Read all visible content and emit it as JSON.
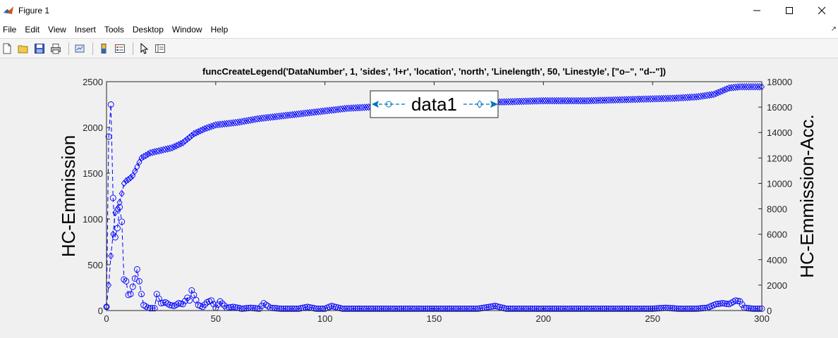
{
  "window": {
    "title": "Figure 1"
  },
  "menu": [
    "File",
    "Edit",
    "View",
    "Insert",
    "Tools",
    "Desktop",
    "Window",
    "Help"
  ],
  "toolbar": {
    "icons": [
      "new-figure-icon",
      "open-file-icon",
      "save-icon",
      "print-icon",
      "link-icon",
      "colorbar-icon",
      "legend-icon",
      "pointer-icon",
      "property-inspector-icon"
    ]
  },
  "colors": {
    "series": "#0000ff",
    "legend_line": "#0072bd",
    "axes": "#262626"
  },
  "chart_data": {
    "type": "line",
    "title": "funcCreateLegend('DataNumber', 1, 'sides', 'l+r', 'location', 'north', 'Linelength', 50, 'Linestyle', [\"o–\", \"d--\"])",
    "xlim": [
      0,
      300
    ],
    "x_ticks": [
      "0",
      "50",
      "100",
      "150",
      "200",
      "250",
      "300"
    ],
    "y_left": {
      "label": "HC-Emmission",
      "lim": [
        0,
        2500
      ],
      "ticks": [
        "0",
        "500",
        "1000",
        "1500",
        "2000",
        "2500"
      ]
    },
    "y_right": {
      "label": "HC-Emmission-Acc.",
      "lim": [
        0,
        18000
      ],
      "ticks": [
        "0",
        "2000",
        "4000",
        "6000",
        "8000",
        "10000",
        "12000",
        "14000",
        "16000",
        "18000"
      ]
    },
    "legend": {
      "entries": [
        "data1"
      ],
      "location": "north"
    },
    "series": [
      {
        "axis": "left",
        "marker": "o",
        "linestyle": "dashed",
        "points": [
          [
            0,
            40
          ],
          [
            1,
            1900
          ],
          [
            2,
            2250
          ],
          [
            3,
            1230
          ],
          [
            4,
            800
          ],
          [
            5,
            900
          ],
          [
            6,
            1130
          ],
          [
            7,
            970
          ],
          [
            8,
            340
          ],
          [
            9,
            320
          ],
          [
            10,
            170
          ],
          [
            11,
            180
          ],
          [
            12,
            260
          ],
          [
            13,
            350
          ],
          [
            14,
            450
          ],
          [
            15,
            320
          ],
          [
            16,
            180
          ],
          [
            17,
            60
          ],
          [
            18,
            45
          ],
          [
            19,
            30
          ],
          [
            20,
            25
          ],
          [
            22,
            25
          ],
          [
            23,
            180
          ],
          [
            25,
            80
          ],
          [
            27,
            90
          ],
          [
            29,
            60
          ],
          [
            31,
            50
          ],
          [
            33,
            80
          ],
          [
            35,
            70
          ],
          [
            37,
            140
          ],
          [
            38,
            110
          ],
          [
            39,
            220
          ],
          [
            40,
            170
          ],
          [
            42,
            60
          ],
          [
            44,
            40
          ],
          [
            46,
            90
          ],
          [
            48,
            110
          ],
          [
            50,
            30
          ],
          [
            52,
            100
          ],
          [
            55,
            30
          ],
          [
            58,
            40
          ],
          [
            62,
            20
          ],
          [
            66,
            30
          ],
          [
            70,
            20
          ],
          [
            72,
            80
          ],
          [
            75,
            30
          ],
          [
            80,
            20
          ],
          [
            88,
            20
          ],
          [
            92,
            40
          ],
          [
            96,
            20
          ],
          [
            100,
            20
          ],
          [
            103,
            50
          ],
          [
            108,
            20
          ],
          [
            115,
            20
          ],
          [
            120,
            20
          ],
          [
            130,
            20
          ],
          [
            140,
            20
          ],
          [
            150,
            20
          ],
          [
            160,
            20
          ],
          [
            170,
            20
          ],
          [
            178,
            50
          ],
          [
            183,
            20
          ],
          [
            190,
            20
          ],
          [
            200,
            20
          ],
          [
            210,
            20
          ],
          [
            220,
            20
          ],
          [
            230,
            20
          ],
          [
            240,
            20
          ],
          [
            250,
            20
          ],
          [
            256,
            30
          ],
          [
            262,
            20
          ],
          [
            270,
            20
          ],
          [
            275,
            30
          ],
          [
            279,
            70
          ],
          [
            282,
            80
          ],
          [
            285,
            70
          ],
          [
            288,
            110
          ],
          [
            290,
            100
          ],
          [
            292,
            30
          ],
          [
            296,
            20
          ],
          [
            300,
            20
          ]
        ]
      },
      {
        "axis": "right",
        "marker": "d",
        "linestyle": "dashed",
        "points": [
          [
            0,
            300
          ],
          [
            1,
            2000
          ],
          [
            2,
            4300
          ],
          [
            3,
            6000
          ],
          [
            4,
            7700
          ],
          [
            5,
            8000
          ],
          [
            6,
            8500
          ],
          [
            7,
            9200
          ],
          [
            8,
            10000
          ],
          [
            9,
            10200
          ],
          [
            10,
            10300
          ],
          [
            12,
            10600
          ],
          [
            14,
            11300
          ],
          [
            16,
            12000
          ],
          [
            18,
            12200
          ],
          [
            20,
            12400
          ],
          [
            25,
            12600
          ],
          [
            30,
            12800
          ],
          [
            35,
            13200
          ],
          [
            40,
            13900
          ],
          [
            45,
            14300
          ],
          [
            50,
            14600
          ],
          [
            60,
            14800
          ],
          [
            70,
            15100
          ],
          [
            80,
            15300
          ],
          [
            90,
            15500
          ],
          [
            100,
            15700
          ],
          [
            110,
            15900
          ],
          [
            120,
            16000
          ],
          [
            130,
            16100
          ],
          [
            140,
            16200
          ],
          [
            150,
            16300
          ],
          [
            160,
            16300
          ],
          [
            170,
            16350
          ],
          [
            180,
            16400
          ],
          [
            200,
            16500
          ],
          [
            220,
            16500
          ],
          [
            240,
            16600
          ],
          [
            260,
            16700
          ],
          [
            270,
            16800
          ],
          [
            278,
            17000
          ],
          [
            285,
            17500
          ],
          [
            290,
            17600
          ],
          [
            300,
            17600
          ]
        ]
      }
    ]
  }
}
